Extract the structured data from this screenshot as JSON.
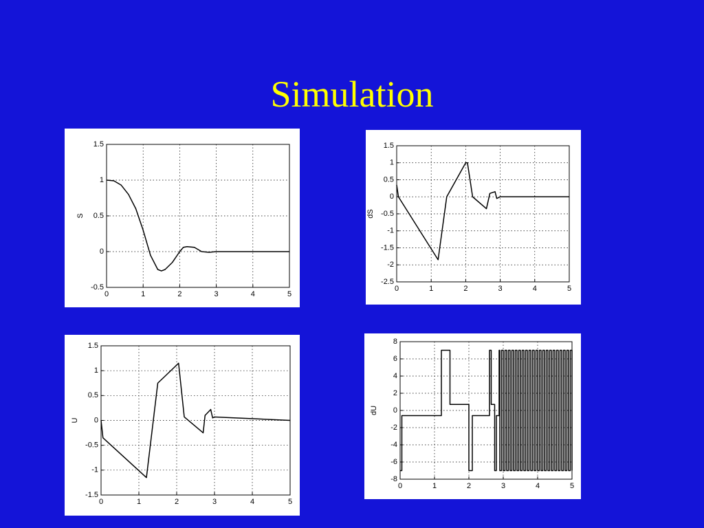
{
  "title": "Simulation",
  "chart_data": [
    {
      "type": "line",
      "ylabel": "S",
      "color": "#000000",
      "grid": true,
      "xlim": [
        0,
        5
      ],
      "ylim": [
        -0.5,
        1.5
      ],
      "xticks": [
        0,
        1,
        2,
        3,
        4,
        5
      ],
      "yticks": [
        -0.5,
        0,
        0.5,
        1,
        1.5
      ],
      "x": [
        0,
        0.2,
        0.4,
        0.6,
        0.8,
        1.0,
        1.2,
        1.4,
        1.5,
        1.6,
        1.8,
        2.0,
        2.1,
        2.2,
        2.4,
        2.6,
        2.8,
        3.0,
        5.0
      ],
      "values": [
        1,
        0.99,
        0.93,
        0.8,
        0.6,
        0.3,
        -0.05,
        -0.25,
        -0.27,
        -0.25,
        -0.15,
        0.0,
        0.06,
        0.07,
        0.06,
        0.0,
        -0.01,
        0,
        0
      ]
    },
    {
      "type": "line",
      "ylabel": "dS",
      "color": "#000000",
      "grid": true,
      "xlim": [
        0,
        5
      ],
      "ylim": [
        -2.5,
        1.5
      ],
      "xticks": [
        0,
        1,
        2,
        3,
        4,
        5
      ],
      "yticks": [
        -2.5,
        -2,
        -1.5,
        -1,
        -0.5,
        0,
        0.5,
        1,
        1.5
      ],
      "x": [
        0,
        0.05,
        1.2,
        1.45,
        2.0,
        2.05,
        2.2,
        2.6,
        2.7,
        2.85,
        2.9,
        3.0,
        5.0
      ],
      "values": [
        0.35,
        0,
        -1.85,
        0,
        1.0,
        1.0,
        0,
        -0.35,
        0.1,
        0.15,
        -0.05,
        0,
        0
      ]
    },
    {
      "type": "line",
      "ylabel": "U",
      "color": "#000000",
      "grid": true,
      "xlim": [
        0,
        5
      ],
      "ylim": [
        -1.5,
        1.5
      ],
      "xticks": [
        0,
        1,
        2,
        3,
        4,
        5
      ],
      "yticks": [
        -1.5,
        -1,
        -0.5,
        0,
        0.5,
        1,
        1.5
      ],
      "x": [
        0,
        0.05,
        1.2,
        1.5,
        2.05,
        2.2,
        2.7,
        2.75,
        2.9,
        2.95,
        3.0,
        5.0
      ],
      "values": [
        0,
        -0.35,
        -1.15,
        0.75,
        1.15,
        0.07,
        -0.25,
        0.1,
        0.22,
        0.05,
        0.07,
        0.0
      ]
    },
    {
      "type": "line",
      "ylabel": "dU",
      "color": "#000000",
      "grid": true,
      "xlim": [
        0,
        5
      ],
      "ylim": [
        -8,
        8
      ],
      "xticks": [
        0,
        1,
        2,
        3,
        4,
        5
      ],
      "yticks": [
        -8,
        -6,
        -4,
        -2,
        0,
        2,
        4,
        6,
        8
      ],
      "x": [
        0,
        0.05,
        0.05,
        1.2,
        1.2,
        1.45,
        1.45,
        2.0,
        2.0,
        2.1,
        2.1,
        2.6,
        2.6,
        2.65,
        2.65,
        2.75,
        2.75,
        2.8,
        2.8,
        2.88,
        2.88,
        2.9,
        2.9,
        2.95,
        2.95,
        3.0,
        3.0,
        3.05,
        3.05,
        3.1,
        3.1,
        3.15,
        3.15,
        3.2,
        3.2,
        3.25,
        3.25,
        3.3,
        3.3,
        3.35,
        3.35,
        3.4,
        3.4,
        3.45,
        3.45,
        3.5,
        3.5,
        3.55,
        3.55,
        3.6,
        3.6,
        3.65,
        3.65,
        3.7,
        3.7,
        3.75,
        3.75,
        3.8,
        3.8,
        3.85,
        3.85,
        3.9,
        3.9,
        3.95,
        3.95,
        4.0,
        4.0,
        4.05,
        4.05,
        4.1,
        4.1,
        4.15,
        4.15,
        4.2,
        4.2,
        4.25,
        4.25,
        4.3,
        4.3,
        4.35,
        4.35,
        4.4,
        4.4,
        4.45,
        4.45,
        4.5,
        4.5,
        4.55,
        4.55,
        4.6,
        4.6,
        4.65,
        4.65,
        4.7,
        4.7,
        4.75,
        4.75,
        4.8,
        4.8,
        4.85,
        4.85,
        4.9,
        4.9,
        4.95,
        4.95,
        5.0,
        5.0
      ],
      "values": [
        -7,
        -7,
        -0.6,
        -0.6,
        7,
        7,
        0.7,
        0.7,
        -7,
        -7,
        -0.6,
        -0.6,
        7,
        7,
        0.7,
        0.7,
        -7,
        -7,
        -0.6,
        -0.6,
        7,
        7,
        -7,
        -7,
        7,
        7,
        -7,
        -7,
        7,
        7,
        -7,
        -7,
        7,
        7,
        -7,
        -7,
        7,
        7,
        -7,
        -7,
        7,
        7,
        -7,
        -7,
        7,
        7,
        -7,
        -7,
        7,
        7,
        -7,
        -7,
        7,
        7,
        -7,
        -7,
        7,
        7,
        -7,
        -7,
        7,
        7,
        -7,
        -7,
        7,
        7,
        -7,
        -7,
        7,
        7,
        -7,
        -7,
        7,
        7,
        -7,
        -7,
        7,
        7,
        -7,
        -7,
        7,
        7,
        -7,
        -7,
        7,
        7,
        -7,
        -7,
        7,
        7,
        -7,
        -7,
        7,
        7,
        -7,
        -7,
        7,
        7,
        -7,
        -7,
        7,
        7,
        -7,
        -7,
        7,
        7,
        -7
      ]
    }
  ]
}
